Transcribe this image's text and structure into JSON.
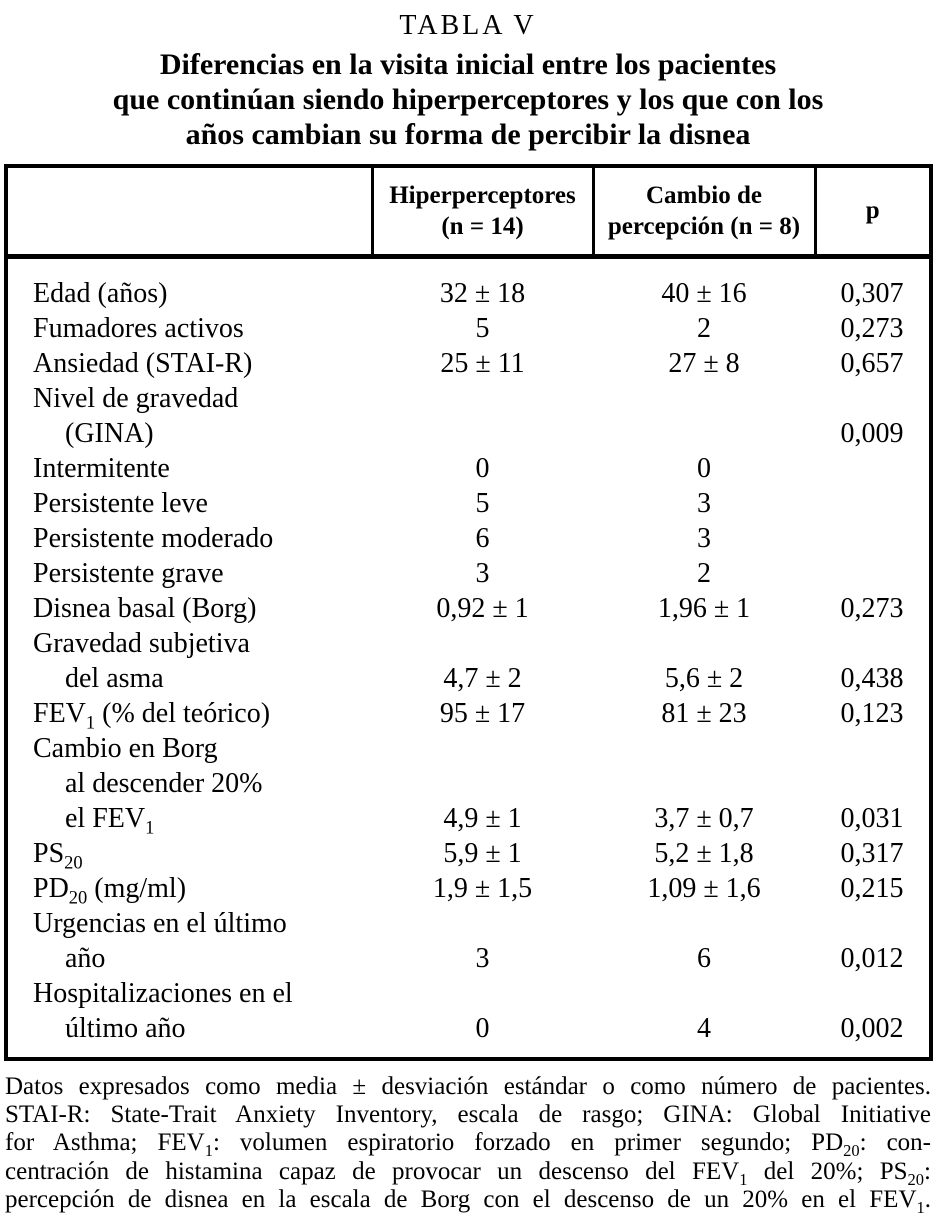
{
  "page": {
    "table_number": "TABLA V",
    "title_lines": [
      "Diferencias en la visita inicial entre los pacientes",
      "que continúan siendo hiperperceptores y los que con los",
      "años cambian su forma de percibir la disnea"
    ]
  },
  "table": {
    "header": {
      "row_label": "",
      "hiper_line1": "Hiperperceptores",
      "hiper_line2": "(n = 14)",
      "cambio_line1": "Cambio de",
      "cambio_line2": "percepción (n = 8)",
      "p_label": "p"
    },
    "rows": [
      {
        "label": "Edad (años)",
        "indent": false,
        "hiper": "32 ± 18",
        "cambio": "40 ± 16",
        "p": "0,307"
      },
      {
        "label": "Fumadores activos",
        "indent": false,
        "hiper": "5",
        "cambio": "2",
        "p": "0,273"
      },
      {
        "label": "Ansiedad (STAI-R)",
        "indent": false,
        "hiper": "25 ± 11",
        "cambio": "27 ± 8",
        "p": "0,657"
      },
      {
        "label": "Nivel de gravedad",
        "indent": false,
        "hiper": "",
        "cambio": "",
        "p": ""
      },
      {
        "label": "(GINA)",
        "indent": true,
        "hiper": "",
        "cambio": "",
        "p": "0,009"
      },
      {
        "label": "Intermitente",
        "indent": false,
        "hiper": "0",
        "cambio": "0",
        "p": ""
      },
      {
        "label": "Persistente leve",
        "indent": false,
        "hiper": "5",
        "cambio": "3",
        "p": ""
      },
      {
        "label": "Persistente moderado",
        "indent": false,
        "hiper": "6",
        "cambio": "3",
        "p": ""
      },
      {
        "label": "Persistente grave",
        "indent": false,
        "hiper": "3",
        "cambio": "2",
        "p": ""
      },
      {
        "label": "Disnea basal (Borg)",
        "indent": false,
        "hiper": "0,92 ± 1",
        "cambio": "1,96 ± 1",
        "p": "0,273"
      },
      {
        "label": "Gravedad subjetiva",
        "indent": false,
        "hiper": "",
        "cambio": "",
        "p": ""
      },
      {
        "label": "del asma",
        "indent": true,
        "hiper": "4,7 ± 2",
        "cambio": "5,6 ± 2",
        "p": "0,438"
      },
      {
        "label": "FEV_{1} (% del teórico)",
        "indent": false,
        "hiper": "95 ± 17",
        "cambio": "81 ± 23",
        "p": "0,123"
      },
      {
        "label": "Cambio en Borg",
        "indent": false,
        "hiper": "",
        "cambio": "",
        "p": ""
      },
      {
        "label": "al descender 20%",
        "indent": true,
        "hiper": "",
        "cambio": "",
        "p": ""
      },
      {
        "label": "el FEV_{1}",
        "indent": true,
        "hiper": "4,9 ± 1",
        "cambio": "3,7 ± 0,7",
        "p": "0,031"
      },
      {
        "label": "PS_{20}",
        "indent": false,
        "hiper": "5,9 ± 1",
        "cambio": "5,2 ± 1,8",
        "p": "0,317"
      },
      {
        "label": "PD_{20} (mg/ml)",
        "indent": false,
        "hiper": "1,9 ± 1,5",
        "cambio": "1,09 ± 1,6",
        "p": "0,215"
      },
      {
        "label": "Urgencias en el último",
        "indent": false,
        "hiper": "",
        "cambio": "",
        "p": ""
      },
      {
        "label": "año",
        "indent": true,
        "hiper": "3",
        "cambio": "6",
        "p": "0,012"
      },
      {
        "label": "Hospitalizaciones en el",
        "indent": false,
        "hiper": "",
        "cambio": "",
        "p": ""
      },
      {
        "label": "último año",
        "indent": true,
        "hiper": "0",
        "cambio": "4",
        "p": "0,002"
      }
    ]
  },
  "footnote_lines": [
    "Datos expresados como media ± desviación estándar o como número de pacientes.",
    "STAI-R: State-Trait Anxiety Inventory, escala de rasgo; GINA: Global Initiative",
    "for Asthma; FEV_{1}: volumen espiratorio forzado en primer segundo; PD_{20}: con-",
    "centración de histamina capaz de provocar un descenso del FEV_{1} del 20%; PS_{20}:",
    "percepción de disnea en la escala de Borg con el descenso de un 20% en el FEV_{1}."
  ]
}
